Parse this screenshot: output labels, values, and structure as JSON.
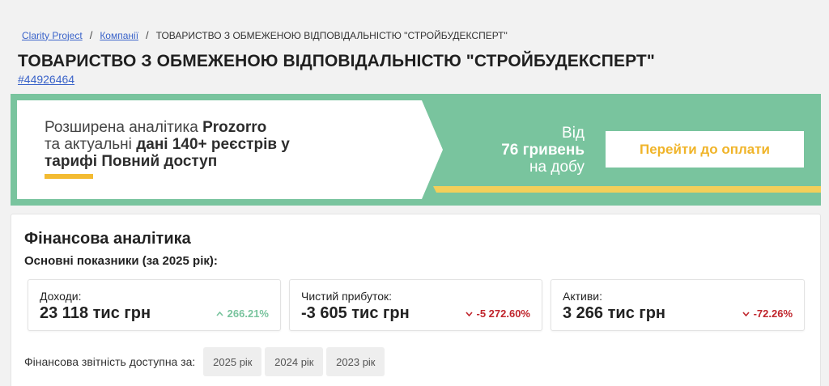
{
  "breadcrumb": {
    "home": "Clarity Project",
    "companies": "Компанії",
    "current": "ТОВАРИСТВО З ОБМЕЖЕНОЮ ВІДПОВІДАЛЬНІСТЮ \"СТРОЙБУДЕКСПЕРТ\""
  },
  "company": {
    "name": "ТОВАРИСТВО З ОБМЕЖЕНОЮ ВІДПОВІДАЛЬНІСТЮ \"СТРОЙБУДЕКСПЕРТ\"",
    "code": "#44926464"
  },
  "banner": {
    "line1_prefix": "Розширена аналітика ",
    "line1_bold": "Prozorro",
    "line2_prefix": "та актуальні ",
    "line2_bold": "дані 140+ реєстрів у тарифі Повний доступ",
    "price_from": "Від",
    "price_amount": "76 гривень",
    "price_period": "на добу",
    "pay_button": "Перейти до оплати",
    "colors": {
      "green": "#79c49e",
      "yellow": "#f3cf5a",
      "accent": "#f0b429"
    }
  },
  "finance": {
    "title": "Фінансова аналітика",
    "subtitle": "Основні показники (за 2025 рік):",
    "metrics": [
      {
        "label": "Доходи:",
        "value": "23 118 тис грн",
        "change": "266.21%",
        "direction": "up"
      },
      {
        "label": "Чистий прибуток:",
        "value": "-3 605 тис грн",
        "change": "-5 272.60%",
        "direction": "down"
      },
      {
        "label": "Активи:",
        "value": "3 266 тис грн",
        "change": "-72.26%",
        "direction": "down"
      }
    ],
    "reports_label": "Фінансова звітність доступна за:",
    "years": [
      "2025 рік",
      "2024 рік",
      "2023 рік"
    ]
  }
}
